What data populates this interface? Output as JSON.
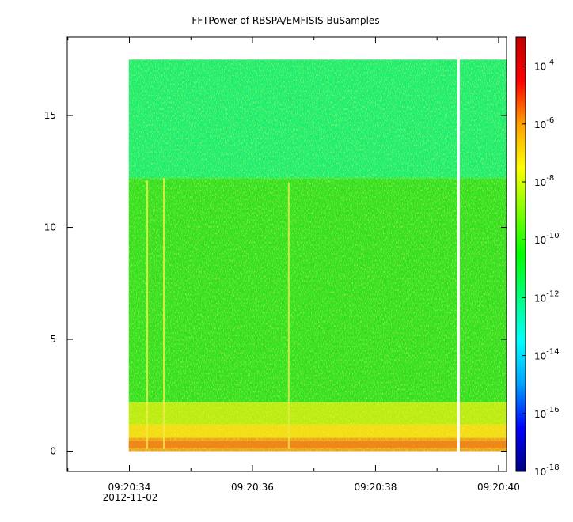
{
  "chart_data": {
    "type": "heatmap",
    "title": "FFTPower of RBSPA/EMFISIS  BuSamples",
    "xlabel": "",
    "ylabel": "",
    "x_range": [
      "09:20:32.99",
      "09:20:40.13"
    ],
    "x_ticks": [
      {
        "label": "09:20:34",
        "value": "09:20:34"
      },
      {
        "label": "09:20:36",
        "value": "09:20:36"
      },
      {
        "label": "09:20:38",
        "value": "09:20:38"
      },
      {
        "label": "09:20:40",
        "value": "09:20:40"
      }
    ],
    "x_minor_ticks": [
      "09:20:33",
      "09:20:35",
      "09:20:37",
      "09:20:39"
    ],
    "x_date_label": "2012-11-02",
    "ylim": [
      -0.9,
      18.5
    ],
    "y_ticks": [
      0,
      5,
      10,
      15
    ],
    "data_extent": {
      "x_start": "09:20:33.99",
      "x_end": "09:20:40.13",
      "y_min": 0,
      "y_max": 17.5,
      "gap": {
        "x_start": "09:20:39.33",
        "x_end": "09:20:39.37"
      }
    },
    "frequency_bands": [
      {
        "y_from": 12.2,
        "y_to": 17.5,
        "level": 1e-12,
        "color": "#18ee72"
      },
      {
        "y_from": 2.2,
        "y_to": 12.2,
        "level": 1e-10,
        "color": "#2ee020"
      },
      {
        "y_from": 1.2,
        "y_to": 2.2,
        "level": 1e-09,
        "color": "#b8ec10"
      },
      {
        "y_from": 0.6,
        "y_to": 1.2,
        "level": 1e-08,
        "color": "#f2dc12"
      },
      {
        "y_from": 0.0,
        "y_to": 0.6,
        "level": 1e-07,
        "color": "#f0a018"
      }
    ],
    "vertical_streaks": [
      {
        "time": "09:20:34.29",
        "y_to": 12.1,
        "color": "#f5e84a"
      },
      {
        "time": "09:20:34.56",
        "y_to": 12.2,
        "color": "#f5e84a"
      },
      {
        "time": "09:20:36.59",
        "y_to": 12.0,
        "color": "#e6e84a"
      }
    ],
    "colorbar": {
      "scale": "log",
      "range": [
        1e-18,
        0.001
      ],
      "tick_values": [
        -18,
        -16,
        -14,
        -12,
        -10,
        -8,
        -6,
        -4
      ],
      "tick_labels": [
        "10",
        "10",
        "10",
        "10",
        "10",
        "10",
        "10",
        "10"
      ],
      "tick_exponents": [
        "-18",
        "-16",
        "-14",
        "-12",
        "-10",
        "-8",
        "-6",
        "-4"
      ],
      "colors": [
        "#000080",
        "#0000ff",
        "#00a0ff",
        "#00ffff",
        "#00ff80",
        "#00ff00",
        "#80ff00",
        "#ffff00",
        "#ffa000",
        "#ff0000",
        "#c00000"
      ]
    }
  }
}
